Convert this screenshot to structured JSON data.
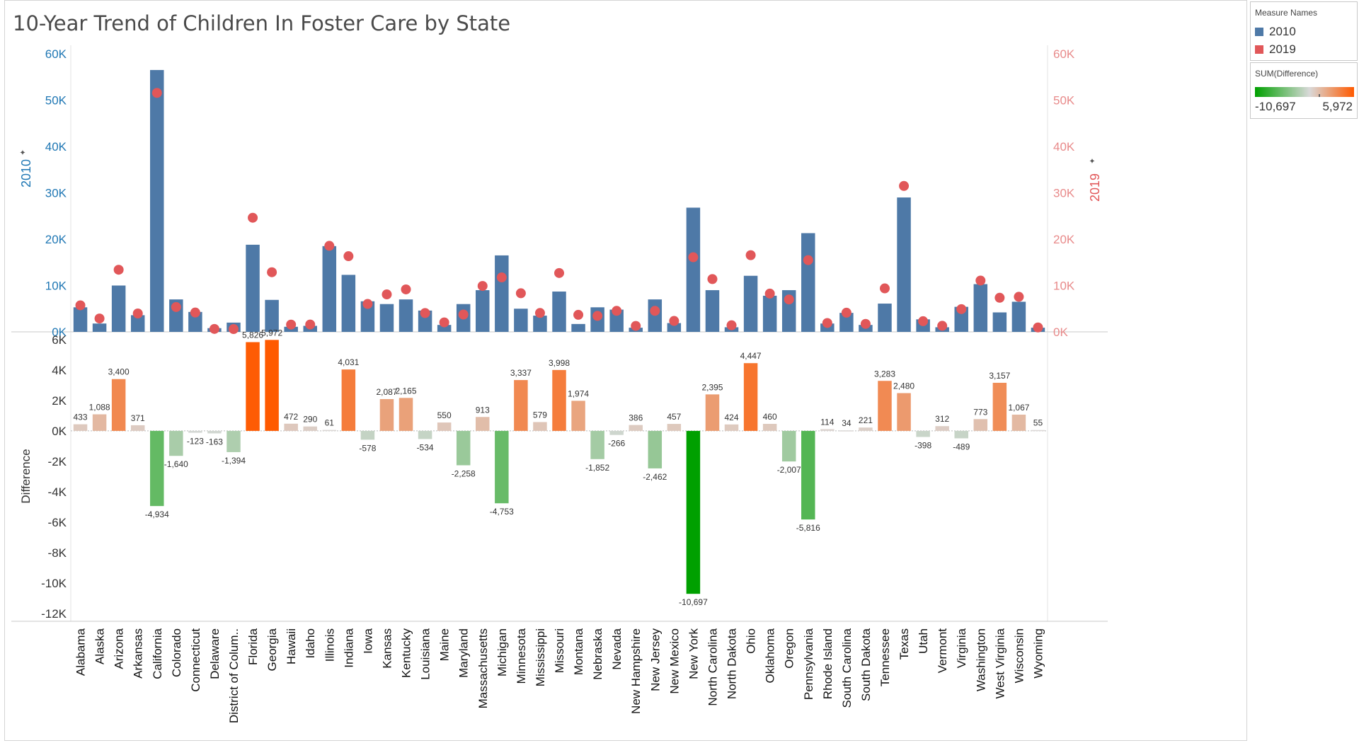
{
  "title": "10-Year Trend of Children In Foster Care by State",
  "legend": {
    "title": "Measure Names",
    "items": [
      {
        "label": "2010",
        "color": "#4e79a7"
      },
      {
        "label": "2019",
        "color": "#e15759"
      }
    ]
  },
  "color_legend": {
    "title": "SUM(Difference)",
    "min_label": "-10,697",
    "max_label": "5,972"
  },
  "chart_data": [
    {
      "type": "bar",
      "ylabel": "2010",
      "y2label": "2019",
      "yticks": [
        "0K",
        "10K",
        "20K",
        "30K",
        "40K",
        "50K",
        "60K"
      ],
      "y2ticks": [
        "0K",
        "10K",
        "20K",
        "30K",
        "40K",
        "50K",
        "60K"
      ],
      "ylim": [
        0,
        60000
      ],
      "categories": [
        "Alabama",
        "Alaska",
        "Arizona",
        "Arkansas",
        "California",
        "Colorado",
        "Connecticut",
        "Delaware",
        "District of Colum..",
        "Florida",
        "Georgia",
        "Hawaii",
        "Idaho",
        "Illinois",
        "Indiana",
        "Iowa",
        "Kansas",
        "Kentucky",
        "Louisiana",
        "Maine",
        "Maryland",
        "Massachusetts",
        "Michigan",
        "Minnesota",
        "Mississippi",
        "Missouri",
        "Montana",
        "Nebraska",
        "Nevada",
        "New Hampshire",
        "New Jersey",
        "New Mexico",
        "New York",
        "North Carolina",
        "North Dakota",
        "Ohio",
        "Oklahoma",
        "Oregon",
        "Pennsylvania",
        "Rhode Island",
        "South Carolina",
        "South Dakota",
        "Tennessee",
        "Texas",
        "Utah",
        "Vermont",
        "Virginia",
        "Washington",
        "West Virginia",
        "Wisconsin",
        "Wyoming"
      ],
      "series": [
        {
          "name": "2010",
          "mark": "bar",
          "color": "#4e79a7",
          "values": [
            5300,
            1800,
            10000,
            3600,
            56500,
            7000,
            4300,
            800,
            2000,
            18800,
            6900,
            1100,
            1300,
            18500,
            12300,
            6600,
            6000,
            7000,
            4600,
            1500,
            6000,
            9000,
            16500,
            5000,
            3500,
            8700,
            1700,
            5300,
            4800,
            900,
            7000,
            1900,
            26800,
            9000,
            1000,
            12100,
            7800,
            9000,
            21300,
            1800,
            4100,
            1500,
            6100,
            29000,
            2700,
            1000,
            5400,
            10300,
            4200,
            6500,
            900
          ]
        },
        {
          "name": "2019",
          "mark": "circle",
          "color": "#e15759",
          "values": [
            5733,
            2888,
            13400,
            3971,
            51566,
            5360,
            4177,
            637,
            606,
            24626,
            12872,
            1572,
            1590,
            18561,
            16331,
            6022,
            8087,
            9165,
            4066,
            2050,
            3742,
            9913,
            11747,
            8337,
            4079,
            12698,
            3674,
            3448,
            4534,
            1286,
            4538,
            2357,
            16103,
            11395,
            1424,
            16547,
            8260,
            6993,
            15484,
            1914,
            4134,
            1721,
            9383,
            31480,
            2302,
            1312,
            4911,
            11073,
            7357,
            7567,
            955
          ]
        }
      ]
    },
    {
      "type": "bar",
      "ylabel": "Difference",
      "yticks": [
        "6K",
        "4K",
        "2K",
        "0K",
        "-2K",
        "-4K",
        "-6K",
        "-8K",
        "-10K",
        "-12K"
      ],
      "ylim": [
        -12500,
        6500
      ],
      "categories": [
        "Alabama",
        "Alaska",
        "Arizona",
        "Arkansas",
        "California",
        "Colorado",
        "Connecticut",
        "Delaware",
        "District of Colum..",
        "Florida",
        "Georgia",
        "Hawaii",
        "Idaho",
        "Illinois",
        "Indiana",
        "Iowa",
        "Kansas",
        "Kentucky",
        "Louisiana",
        "Maine",
        "Maryland",
        "Massachusetts",
        "Michigan",
        "Minnesota",
        "Mississippi",
        "Missouri",
        "Montana",
        "Nebraska",
        "Nevada",
        "New Hampshire",
        "New Jersey",
        "New Mexico",
        "New York",
        "North Carolina",
        "North Dakota",
        "Ohio",
        "Oklahoma",
        "Oregon",
        "Pennsylvania",
        "Rhode Island",
        "South Carolina",
        "South Dakota",
        "Tennessee",
        "Texas",
        "Utah",
        "Vermont",
        "Virginia",
        "Washington",
        "West Virginia",
        "Wisconsin",
        "Wyoming"
      ],
      "series": [
        {
          "name": "SUM(Difference)",
          "values": [
            433,
            1088,
            3400,
            371,
            -4934,
            -1640,
            -123,
            -163,
            -1394,
            5826,
            5972,
            472,
            290,
            61,
            4031,
            -578,
            2087,
            2165,
            -534,
            550,
            -2258,
            913,
            -4753,
            3337,
            579,
            3998,
            1974,
            -1852,
            -266,
            386,
            -2462,
            457,
            -10697,
            2395,
            424,
            4447,
            460,
            -2007,
            -5816,
            114,
            34,
            221,
            3283,
            2480,
            -398,
            312,
            -489,
            773,
            3157,
            1067,
            55
          ],
          "labels": [
            "433",
            "1,088",
            "3,400",
            "371",
            "-4,934",
            "-1,640",
            "-123",
            "-163",
            "-1,394",
            "5,826",
            "5,972",
            "472",
            "290",
            "61",
            "4,031",
            "-578",
            "2,087",
            "2,165",
            "-534",
            "550",
            "-2,258",
            "913",
            "-4,753",
            "3,337",
            "579",
            "3,998",
            "1,974",
            "-1,852",
            "-266",
            "386",
            "-2,462",
            "457",
            "-10,697",
            "2,395",
            "424",
            "4,447",
            "460",
            "-2,007",
            "-5,816",
            "114",
            "34",
            "221",
            "3,283",
            "2,480",
            "-398",
            "312",
            "-489",
            "773",
            "3,157",
            "1,067",
            "55"
          ]
        }
      ],
      "color_scale": {
        "negative": "#00a000",
        "zero": "#d9d9d9",
        "positive": "#ff5a00"
      }
    }
  ]
}
